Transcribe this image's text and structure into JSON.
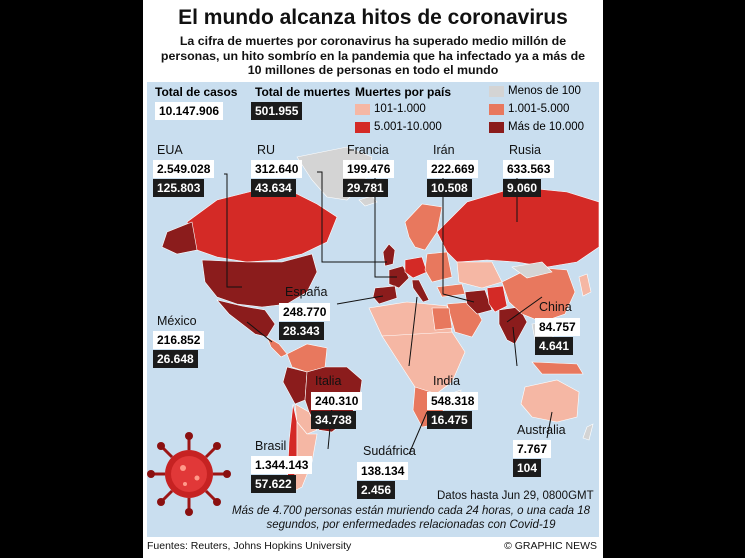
{
  "title": "El mundo alcanza hitos de coronavirus",
  "subtitle": "La cifra de muertes por coronavirus ha superado medio millón de personas, un hito sombrío en la pandemia que ha infectado ya a más de 10 millones de personas en todo el mundo",
  "totals": {
    "cases_label": "Total de casos",
    "cases_value": "10.147.906",
    "deaths_label": "Total de muertes",
    "deaths_value": "501.955"
  },
  "legend": {
    "title": "Muertes por país",
    "items": [
      {
        "label": "Menos de 100",
        "color": "#d4d4d4"
      },
      {
        "label": "101-1.000",
        "color": "#f5b7a4"
      },
      {
        "label": "1.001-5.000",
        "color": "#e8785e"
      },
      {
        "label": "5.001-10.000",
        "color": "#d42a26"
      },
      {
        "label": "Más de 10.000",
        "color": "#8b1c1c"
      }
    ]
  },
  "countries": {
    "usa": {
      "name": "EUA",
      "cases": "2.549.028",
      "deaths": "125.803"
    },
    "uk": {
      "name": "RU",
      "cases": "312.640",
      "deaths": "43.634"
    },
    "france": {
      "name": "Francia",
      "cases": "199.476",
      "deaths": "29.781"
    },
    "iran": {
      "name": "Irán",
      "cases": "222.669",
      "deaths": "10.508"
    },
    "russia": {
      "name": "Rusia",
      "cases": "633.563",
      "deaths": "9.060"
    },
    "spain": {
      "name": "España",
      "cases": "248.770",
      "deaths": "28.343"
    },
    "mexico": {
      "name": "México",
      "cases": "216.852",
      "deaths": "26.648"
    },
    "china": {
      "name": "China",
      "cases": "84.757",
      "deaths": "4.641"
    },
    "italy": {
      "name": "Italia",
      "cases": "240.310",
      "deaths": "34.738"
    },
    "india": {
      "name": "India",
      "cases": "548.318",
      "deaths": "16.475"
    },
    "australia": {
      "name": "Australia",
      "cases": "7.767",
      "deaths": "104"
    },
    "brazil": {
      "name": "Brasil",
      "cases": "1.344.143",
      "deaths": "57.622"
    },
    "south_africa": {
      "name": "Sudáfrica",
      "cases": "138.134",
      "deaths": "2.456"
    }
  },
  "data_date": "Datos hasta Jun 29, 0800GMT",
  "note": "Más de 4.700 personas están muriendo cada 24 horas, o una cada 18 segundos, por enfermedades relacionadas con Covid-19",
  "sources": "Fuentes: Reuters, Johns Hopkins University",
  "credit": "© GRAPHIC NEWS",
  "colors": {
    "ocean": "#c9deef",
    "less_100": "#d4d4d4",
    "c101_1000": "#f5b7a4",
    "c1001_5000": "#e8785e",
    "c5001_10000": "#d42a26",
    "c10000_plus": "#8b1c1c"
  }
}
